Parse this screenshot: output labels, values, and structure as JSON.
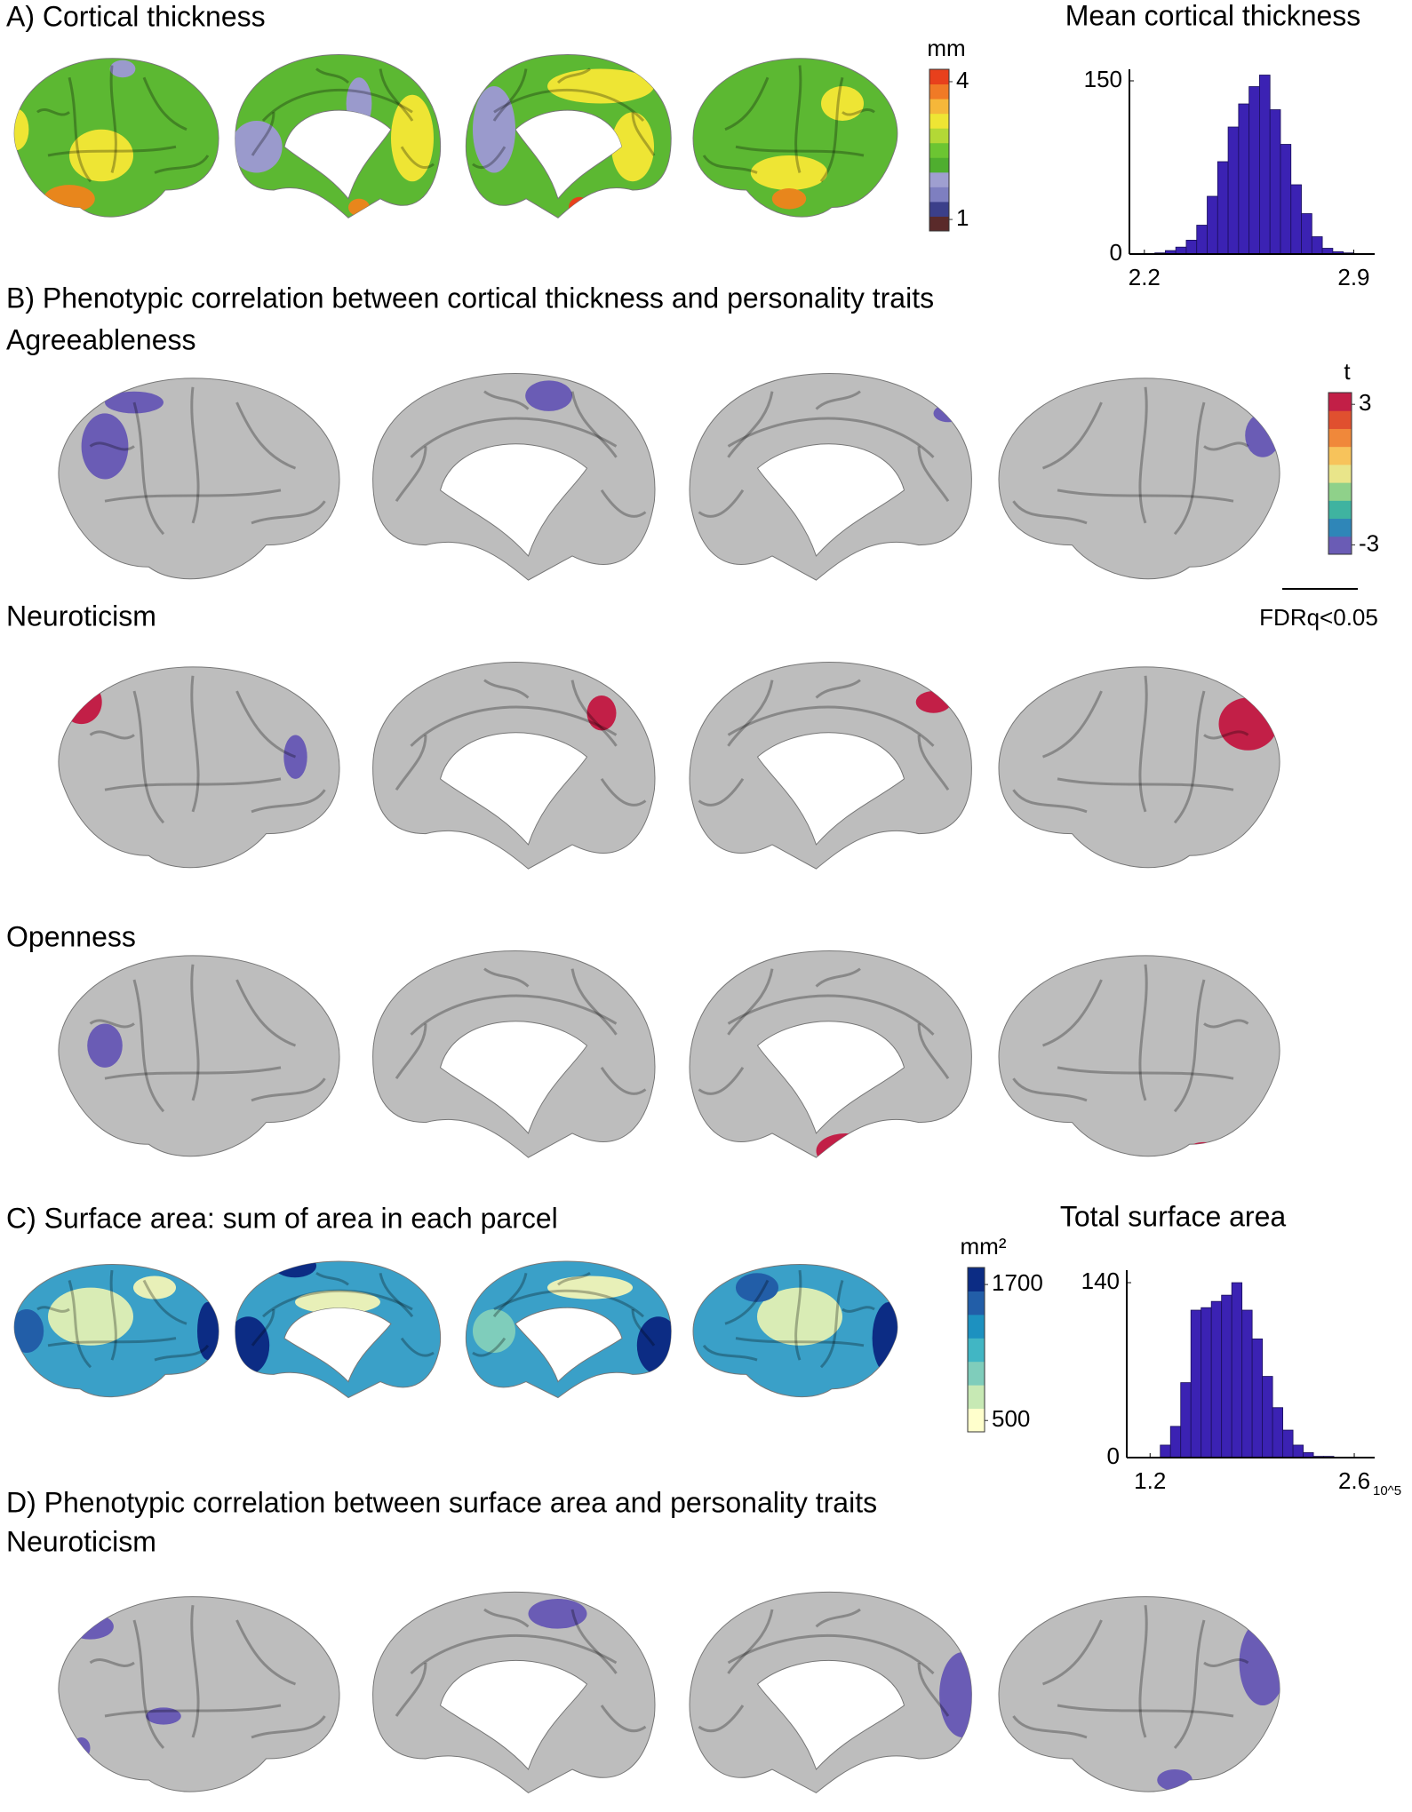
{
  "panels": {
    "a": {
      "title": "A) Cortical thickness"
    },
    "b": {
      "title": "B) Phenotypic correlation between cortical thickness and personality traits",
      "rows": [
        "Agreeableness",
        "Neuroticism",
        "Openness"
      ]
    },
    "c": {
      "title": "C) Surface area: sum of area in each parcel"
    },
    "d": {
      "title": "D) Phenotypic correlation between surface area and personality traits",
      "rows": [
        "Neuroticism"
      ]
    }
  },
  "colorbars": [
    {
      "label": "mm",
      "colors": [
        "#5a2a2a",
        "#3b3f8a",
        "#7e7fc0",
        "#9f9fd0",
        "#4fae2f",
        "#6cc532",
        "#b3d836",
        "#eee534",
        "#f5b73a",
        "#f07a26",
        "#e8401c"
      ],
      "lim": [
        0.75,
        4.27
      ],
      "ticks": [
        1,
        4
      ]
    },
    {
      "label": "t",
      "colors": [
        "#6a5cb5",
        "#2f86b8",
        "#3fb3a0",
        "#8fd18a",
        "#e9e58a",
        "#f7c35b",
        "#f0883a",
        "#e0502f",
        "#c21f47"
      ],
      "lim": [
        -3.4,
        3.5
      ],
      "ticks": [
        -3,
        3
      ]
    },
    {
      "label": "mm²",
      "colors": [
        "#ffffcc",
        "#c7e9b4",
        "#7fcdbb",
        "#41b6c4",
        "#1d91c0",
        "#225ea8",
        "#0c2c84"
      ],
      "lim": [
        400,
        1850
      ],
      "ticks": [
        500,
        1700
      ]
    }
  ],
  "significance": "FDRq<0.05",
  "chart_data": [
    {
      "type": "histogram",
      "title": "Mean cortical thickness",
      "color": "#3b22b3",
      "bins": [
        2.2,
        2.235,
        2.27,
        2.305,
        2.34,
        2.375,
        2.41,
        2.445,
        2.48,
        2.515,
        2.55,
        2.585,
        2.62,
        2.655,
        2.69,
        2.725,
        2.76,
        2.795,
        2.83,
        2.865,
        2.9
      ],
      "values": [
        0,
        1,
        3,
        6,
        12,
        25,
        50,
        80,
        110,
        130,
        145,
        155,
        125,
        95,
        60,
        35,
        15,
        5,
        2,
        1
      ],
      "xlim": [
        2.15,
        2.97
      ],
      "xticks": [
        2.2,
        2.9
      ],
      "ylim": [
        0,
        160
      ],
      "yticks": [
        0,
        150
      ]
    },
    {
      "type": "histogram",
      "title": "Total surface area",
      "color": "#3b22b3",
      "x_unit": "10^5",
      "bins": [
        1.2,
        1.27,
        1.34,
        1.41,
        1.48,
        1.55,
        1.62,
        1.69,
        1.76,
        1.83,
        1.9,
        1.97,
        2.04,
        2.11,
        2.18,
        2.25,
        2.32,
        2.39,
        2.46,
        2.53,
        2.6
      ],
      "values": [
        0,
        10,
        25,
        60,
        118,
        120,
        125,
        130,
        140,
        118,
        95,
        65,
        40,
        22,
        10,
        4,
        1,
        1,
        0,
        0
      ],
      "xlim": [
        1.04,
        2.74
      ],
      "xticks": [
        1.2,
        2.6
      ],
      "ylim": [
        0,
        150
      ],
      "yticks": [
        0,
        140
      ]
    }
  ]
}
